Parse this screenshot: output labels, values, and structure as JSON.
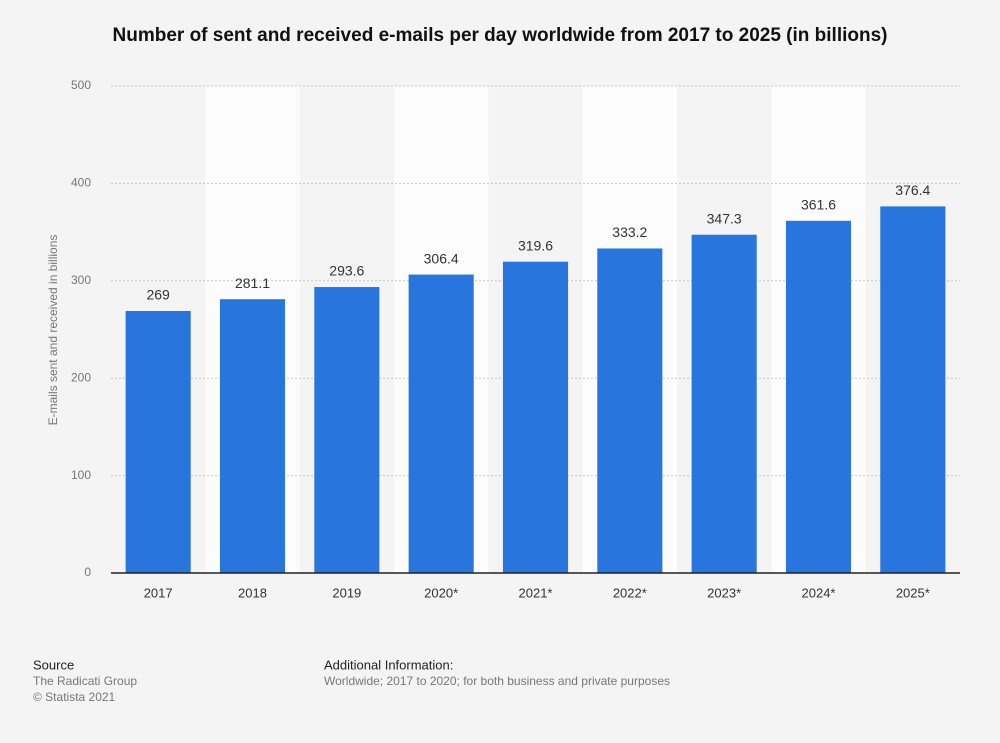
{
  "chart_data": {
    "type": "bar",
    "title": "Number of sent and received e-mails per day worldwide from 2017 to 2025 (in billions)",
    "y_label": "E-mails sent and received in billions",
    "categories": [
      "2017",
      "2018",
      "2019",
      "2020*",
      "2021*",
      "2022*",
      "2023*",
      "2024*",
      "2025*"
    ],
    "values": [
      269,
      281.1,
      293.6,
      306.4,
      319.6,
      333.2,
      347.3,
      361.6,
      376.4
    ],
    "color": "#2876dd",
    "ylim": [
      0,
      500
    ],
    "yticks": [
      0,
      100,
      200,
      300,
      400,
      500
    ],
    "grid": true
  },
  "footer": {
    "source_heading": "Source",
    "source_lines": [
      "The Radicati Group",
      "© Statista 2021"
    ],
    "info_heading": "Additional Information:",
    "info_text": "Worldwide; 2017 to 2020; for both business and private purposes"
  }
}
